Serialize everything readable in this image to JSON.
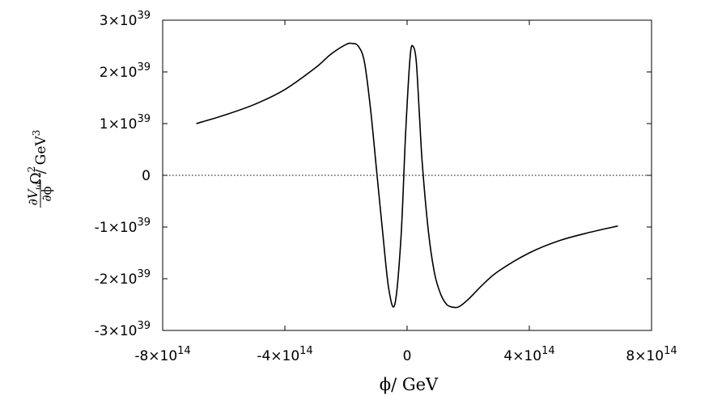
{
  "chart_data": {
    "type": "line",
    "title": "",
    "xlabel": "ϕ/ GeV",
    "ylabel": {
      "prefix": "Ω",
      "prefix_sup": "2",
      "numerator": "∂V",
      "numerator_sub": "ω",
      "denominator": "∂ϕ",
      "suffix": "/ GeV",
      "suffix_sup": "3"
    },
    "xlim": [
      -800000000000000.0,
      800000000000000.0
    ],
    "ylim": [
      -3e+39,
      3e+39
    ],
    "grid": false,
    "legend": "none",
    "line_color": "#000000",
    "zero_line_style": "dotted",
    "x_ticks": [
      {
        "value": -800000000000000.0,
        "mantissa": "-8×10",
        "exp": "14"
      },
      {
        "value": -400000000000000.0,
        "mantissa": "-4×10",
        "exp": "14"
      },
      {
        "value": 0,
        "mantissa": "0",
        "exp": ""
      },
      {
        "value": 400000000000000.0,
        "mantissa": "4×10",
        "exp": "14"
      },
      {
        "value": 800000000000000.0,
        "mantissa": "8×10",
        "exp": "14"
      }
    ],
    "y_ticks": [
      {
        "value": 3e+39,
        "mantissa": "3×10",
        "exp": "39"
      },
      {
        "value": 2e+39,
        "mantissa": "2×10",
        "exp": "39"
      },
      {
        "value": 1e+39,
        "mantissa": "1×10",
        "exp": "39"
      },
      {
        "value": 0,
        "mantissa": "0",
        "exp": ""
      },
      {
        "value": -1e+39,
        "mantissa": "-1×10",
        "exp": "39"
      },
      {
        "value": -2e+39,
        "mantissa": "-2×10",
        "exp": "39"
      },
      {
        "value": -3e+39,
        "mantissa": "-3×10",
        "exp": "39"
      }
    ],
    "series": [
      {
        "x": [
          -690000000000000.0,
          -600000000000000.0,
          -500000000000000.0,
          -400000000000000.0,
          -300000000000000.0,
          -250000000000000.0,
          -200000000000000.0,
          -180000000000000.0,
          -160000000000000.0,
          -140000000000000.0,
          -120000000000000.0,
          -100000000000000.0,
          -80000000000000.0,
          -60000000000000.0,
          -40000000000000.0,
          -20000000000000.0,
          -5000000000000.0,
          10000000000000.0,
          20000000000000.0,
          30000000000000.0,
          40000000000000.0,
          50000000000000.0,
          70000000000000.0,
          90000000000000.0,
          110000000000000.0,
          130000000000000.0,
          150000000000000.0,
          170000000000000.0,
          200000000000000.0,
          250000000000000.0,
          300000000000000.0,
          400000000000000.0,
          500000000000000.0,
          600000000000000.0,
          690000000000000.0
        ],
        "y": [
          1e+39,
          1.16e+39,
          1.37e+39,
          1.66e+39,
          2.08e+39,
          2.34e+39,
          2.53e+39,
          2.55e+39,
          2.5e+39,
          2.2e+39,
          1.3e+39,
          1e+38,
          -1.1e+39,
          -2.2e+39,
          -2.49e+39,
          -1.2e+39,
          8e+38,
          2.3e+39,
          2.49e+39,
          2.2e+39,
          1.2e+39,
          2e+38,
          -1.1e+39,
          -1.9e+39,
          -2.3e+39,
          -2.5e+39,
          -2.55e+39,
          -2.54e+39,
          -2.4e+39,
          -2.1e+39,
          -1.85e+39,
          -1.5e+39,
          -1.26e+39,
          -1.1e+39,
          -9.8e+38
        ]
      }
    ]
  }
}
